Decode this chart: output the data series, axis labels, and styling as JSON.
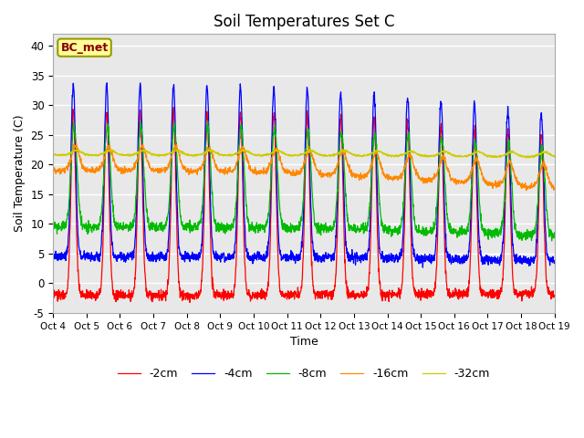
{
  "title": "Soil Temperatures Set C",
  "xlabel": "Time",
  "ylabel": "Soil Temperature (C)",
  "ylim": [
    -5,
    42
  ],
  "xlim": [
    0,
    15
  ],
  "annotation_text": "BC_met",
  "legend_labels": [
    "-2cm",
    "-4cm",
    "-8cm",
    "-16cm",
    "-32cm"
  ],
  "line_colors": [
    "#ff0000",
    "#0000ff",
    "#00bb00",
    "#ff8800",
    "#cccc00"
  ],
  "tick_positions": [
    0,
    1,
    2,
    3,
    4,
    5,
    6,
    7,
    8,
    9,
    10,
    11,
    12,
    13,
    14,
    15
  ],
  "tick_labels": [
    "Oct 4",
    "Oct 5",
    "Oct 6",
    "Oct 7",
    "Oct 8",
    "Oct 9",
    "Oct 10",
    "Oct 11",
    "Oct 12",
    "Oct 13",
    "Oct 14",
    "Oct 15",
    "Oct 16",
    "Oct 17",
    "Oct 18",
    "Oct 19"
  ],
  "yticks": [
    -5,
    0,
    5,
    10,
    15,
    20,
    25,
    30,
    35,
    40
  ],
  "background_color": "#e8e8e8",
  "fig_background": "#ffffff",
  "grid_color": "#ffffff",
  "title_fontsize": 12,
  "axis_fontsize": 9,
  "legend_fontsize": 9
}
